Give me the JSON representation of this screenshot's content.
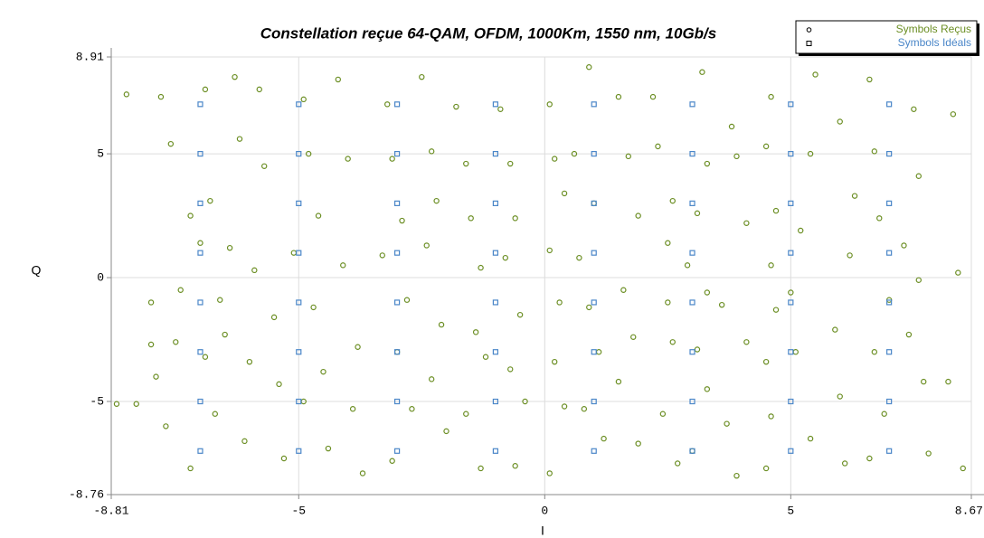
{
  "chart_data": {
    "type": "scatter",
    "title": "Constellation reçue 64-QAM, OFDM, 1000Km, 1550 nm, 10Gb/s",
    "xlabel": "I",
    "ylabel": "Q",
    "xlim": [
      -8.81,
      8.67
    ],
    "ylim": [
      -8.76,
      8.91
    ],
    "xticks": [
      -8.81,
      -5,
      0,
      5,
      8.67
    ],
    "yticks": [
      -8.76,
      -5,
      0,
      5,
      8.91
    ],
    "grid": true,
    "legend": "upper right",
    "series": [
      {
        "name": "Symbols Reçus",
        "color": "#6b8e23",
        "marker": "circle",
        "x": [
          -8.0,
          -7.4,
          -7.8,
          -7.6,
          -7.2,
          -7.0,
          -7.5,
          -7.9,
          -8.3,
          -7.7,
          -7.2,
          -6.9,
          -6.8,
          -6.6,
          -6.5,
          -6.7,
          -6.3,
          -6.2,
          -6.4,
          -6.0,
          -6.1,
          -5.8,
          -5.7,
          -5.9,
          -5.5,
          -5.4,
          -5.3,
          -4.9,
          -4.8,
          -4.6,
          -5.1,
          -4.7,
          -4.5,
          -4.9,
          -4.4,
          -4.2,
          -4.0,
          -4.1,
          -3.8,
          -3.9,
          -3.7,
          -3.2,
          -3.1,
          -2.9,
          -3.3,
          -2.8,
          -3.0,
          -2.7,
          -3.1,
          -2.5,
          -2.3,
          -2.2,
          -2.4,
          -2.1,
          -2.3,
          -2.0,
          -1.8,
          -1.6,
          -1.5,
          -1.3,
          -1.4,
          -1.2,
          -1.6,
          -1.3,
          -0.9,
          -0.7,
          -0.6,
          -0.8,
          -0.5,
          -0.7,
          -0.4,
          -0.6,
          0.1,
          0.2,
          0.4,
          0.1,
          0.3,
          0.2,
          0.4,
          0.1,
          0.9,
          0.6,
          1.0,
          0.7,
          0.9,
          1.1,
          0.8,
          1.2,
          1.5,
          1.7,
          1.9,
          1.6,
          1.8,
          1.5,
          1.9,
          2.2,
          2.3,
          2.6,
          2.5,
          2.5,
          2.6,
          2.4,
          2.7,
          3.2,
          3.3,
          3.1,
          2.9,
          3.3,
          3.1,
          3.3,
          3.0,
          3.8,
          3.9,
          4.1,
          3.6,
          4.1,
          3.7,
          3.9,
          4.6,
          4.5,
          4.7,
          4.6,
          4.7,
          4.5,
          4.6,
          4.5,
          5.5,
          5.4,
          5.2,
          5.0,
          5.1,
          5.4,
          6.0,
          6.3,
          6.2,
          5.9,
          6.0,
          6.1,
          6.6,
          6.7,
          6.8,
          7.0,
          6.7,
          6.9,
          6.6,
          7.5,
          7.6,
          7.3,
          7.6,
          7.4,
          7.7,
          7.8,
          8.3,
          8.4,
          8.2,
          8.5,
          -8.7,
          -8.5,
          -8.0,
          -6.9
        ],
        "values": [
          -1.0,
          -0.5,
          7.3,
          5.4,
          2.5,
          1.4,
          -2.6,
          -4.0,
          -5.1,
          -6.0,
          -7.7,
          7.6,
          3.1,
          -0.9,
          -2.3,
          -5.5,
          8.1,
          5.6,
          1.2,
          -3.4,
          -6.6,
          7.6,
          4.5,
          0.3,
          -1.6,
          -4.3,
          -7.3,
          7.2,
          5.0,
          2.5,
          1.0,
          -1.2,
          -3.8,
          -5.0,
          -6.9,
          8.0,
          4.8,
          0.5,
          -2.8,
          -5.3,
          -7.9,
          7.0,
          4.8,
          2.3,
          0.9,
          -0.9,
          -3.0,
          -5.3,
          -7.4,
          8.1,
          5.1,
          3.1,
          1.3,
          -1.9,
          -4.1,
          -6.2,
          6.9,
          4.6,
          2.4,
          0.4,
          -2.2,
          -3.2,
          -5.5,
          -7.7,
          6.8,
          4.6,
          2.4,
          0.8,
          -1.5,
          -3.7,
          -5.0,
          -7.6,
          7.0,
          4.8,
          3.4,
          1.1,
          -1.0,
          -3.4,
          -5.2,
          -7.9,
          8.5,
          5.0,
          3.0,
          0.8,
          -1.2,
          -3.0,
          -5.3,
          -6.5,
          7.3,
          4.9,
          2.5,
          -0.5,
          -2.4,
          -4.2,
          -6.7,
          7.3,
          5.3,
          3.1,
          1.4,
          -1.0,
          -2.6,
          -5.5,
          -7.5,
          8.3,
          4.6,
          2.6,
          0.5,
          -0.6,
          -2.9,
          -4.5,
          -7.0,
          6.1,
          4.9,
          2.2,
          -1.1,
          -2.6,
          -5.9,
          -8.0,
          7.3,
          5.3,
          2.7,
          0.5,
          -1.3,
          -3.4,
          -5.6,
          -7.7,
          8.2,
          5.0,
          1.9,
          -0.6,
          -3.0,
          -6.5,
          6.3,
          3.3,
          0.9,
          -2.1,
          -4.8,
          -7.5,
          8.0,
          5.1,
          2.4,
          -0.9,
          -3.0,
          -5.5,
          -7.3,
          6.8,
          4.1,
          1.3,
          -0.1,
          -2.3,
          -4.2,
          -7.1,
          6.6,
          0.2,
          -4.2,
          -7.7,
          -5.1,
          7.4,
          -2.7,
          -3.2
        ]
      },
      {
        "name": "Symbols Idéals",
        "color": "#4a86c8",
        "marker": "square",
        "x": [
          -7,
          -7,
          -7,
          -7,
          -7,
          -7,
          -7,
          -7,
          -5,
          -5,
          -5,
          -5,
          -5,
          -5,
          -5,
          -5,
          -3,
          -3,
          -3,
          -3,
          -3,
          -3,
          -3,
          -3,
          -1,
          -1,
          -1,
          -1,
          -1,
          -1,
          -1,
          -1,
          1,
          1,
          1,
          1,
          1,
          1,
          1,
          1,
          3,
          3,
          3,
          3,
          3,
          3,
          3,
          3,
          5,
          5,
          5,
          5,
          5,
          5,
          5,
          5,
          7,
          7,
          7,
          7,
          7,
          7,
          7,
          7
        ],
        "values": [
          7,
          5,
          3,
          1,
          -1,
          -3,
          -5,
          -7,
          7,
          5,
          3,
          1,
          -1,
          -3,
          -5,
          -7,
          7,
          5,
          3,
          1,
          -1,
          -3,
          -5,
          -7,
          7,
          5,
          3,
          1,
          -1,
          -3,
          -5,
          -7,
          7,
          5,
          3,
          1,
          -1,
          -3,
          -5,
          -7,
          7,
          5,
          3,
          1,
          -1,
          -3,
          -5,
          -7,
          7,
          5,
          3,
          1,
          -1,
          -3,
          -5,
          -7,
          7,
          5,
          3,
          1,
          -1,
          -3,
          -5,
          -7
        ]
      }
    ]
  }
}
